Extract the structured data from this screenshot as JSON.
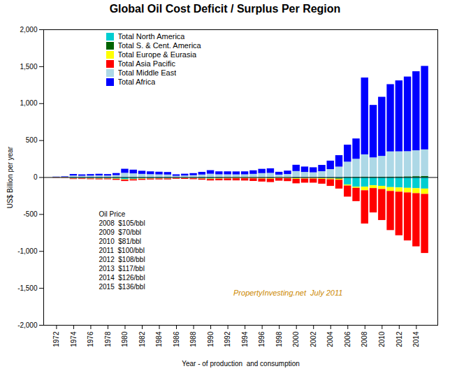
{
  "chart_data": {
    "type": "bar",
    "stacked": true,
    "title": "Global Oil Cost Deficit / Surplus Per Region",
    "xlabel": "Year - of production  and consumption",
    "ylabel": "US$ Billion per year",
    "x": [
      1972,
      1973,
      1974,
      1975,
      1976,
      1977,
      1978,
      1979,
      1980,
      1981,
      1982,
      1983,
      1984,
      1985,
      1986,
      1987,
      1988,
      1989,
      1990,
      1991,
      1992,
      1993,
      1994,
      1995,
      1996,
      1997,
      1998,
      1999,
      2000,
      2001,
      2002,
      2003,
      2004,
      2005,
      2006,
      2007,
      2008,
      2009,
      2010,
      2011,
      2012,
      2013,
      2014,
      2015
    ],
    "xlim": [
      1970.5,
      2016.5
    ],
    "xticks": [
      1972,
      1974,
      1976,
      1978,
      1980,
      1982,
      1984,
      1986,
      1988,
      1990,
      1992,
      1994,
      1996,
      1998,
      2000,
      2002,
      2004,
      2006,
      2008,
      2010,
      2012,
      2014
    ],
    "ylim": [
      -2000,
      2000
    ],
    "yticks": [
      {
        "value": -2000,
        "label": "-2,000"
      },
      {
        "value": -1500,
        "label": "-1,500"
      },
      {
        "value": -1000,
        "label": "-1,000"
      },
      -500,
      0,
      500,
      {
        "value": 1000,
        "label": "1,000"
      },
      {
        "value": 1500,
        "label": "1,500"
      },
      {
        "value": 2000,
        "label": "2,000"
      }
    ],
    "grid": false,
    "legend": "upper left",
    "series": [
      {
        "name": "Total North America",
        "color": "#00CED1",
        "values": [
          -2,
          -3,
          -12,
          -11,
          -13,
          -14,
          -13,
          -16,
          -24,
          -20,
          -16,
          -14,
          -13,
          -13,
          -8,
          -8,
          -10,
          -13,
          -16,
          -12,
          -8,
          -6,
          -6,
          -6,
          -8,
          -10,
          -6,
          -6,
          -10,
          -8,
          -8,
          -10,
          -12,
          -15,
          -100,
          -130,
          -130,
          -110,
          -118,
          -135,
          -140,
          -145,
          -150,
          -155
        ]
      },
      {
        "name": "Total S. & Cent. America",
        "color": "#006400",
        "values": [
          -1,
          -1,
          -2,
          -2,
          -2,
          -2,
          -2,
          -3,
          -4,
          -3,
          -2,
          -2,
          -2,
          -2,
          -2,
          -2,
          -2,
          -2,
          -3,
          -3,
          -3,
          -3,
          -3,
          -4,
          -4,
          -4,
          -3,
          -3,
          -5,
          -4,
          -4,
          -5,
          -6,
          -7,
          4,
          6,
          8,
          7,
          7,
          8,
          9,
          11,
          13,
          15
        ]
      },
      {
        "name": "Total Europe & Eurasia",
        "color": "#FFFF00",
        "values": [
          -2,
          -2,
          -4,
          -4,
          -4,
          -4,
          -4,
          -5,
          -7,
          -6,
          -5,
          -4,
          -4,
          -4,
          -3,
          -4,
          -4,
          -5,
          -6,
          -6,
          -7,
          -7,
          -7,
          -7,
          -8,
          -8,
          -6,
          -7,
          -9,
          -8,
          -8,
          -9,
          -11,
          -13,
          -14,
          -15,
          -48,
          -38,
          -43,
          -52,
          -57,
          -62,
          -67,
          -72
        ]
      },
      {
        "name": "Total Asia Pacific",
        "color": "#FF0000",
        "values": [
          -3,
          -4,
          -8,
          -8,
          -9,
          -10,
          -10,
          -13,
          -18,
          -16,
          -14,
          -12,
          -12,
          -12,
          -9,
          -10,
          -12,
          -15,
          -20,
          -22,
          -25,
          -28,
          -30,
          -35,
          -40,
          -45,
          -33,
          -38,
          -60,
          -55,
          -55,
          -65,
          -90,
          -120,
          -150,
          -180,
          -450,
          -330,
          -420,
          -530,
          -590,
          -650,
          -720,
          -800
        ]
      },
      {
        "name": "Total Middle East",
        "color": "#ADD8E6",
        "values": [
          3,
          5,
          22,
          19,
          21,
          23,
          21,
          27,
          58,
          51,
          44,
          40,
          37,
          35,
          18,
          22,
          26,
          35,
          46,
          38,
          38,
          37,
          38,
          44,
          54,
          57,
          34,
          42,
          82,
          70,
          65,
          80,
          108,
          142,
          205,
          242,
          300,
          260,
          280,
          340,
          340,
          340,
          350,
          360
        ]
      },
      {
        "name": "Total Africa",
        "color": "#0000FF",
        "values": [
          4,
          6,
          20,
          18,
          20,
          22,
          20,
          28,
          55,
          50,
          42,
          38,
          36,
          34,
          20,
          24,
          28,
          36,
          48,
          40,
          40,
          40,
          40,
          48,
          58,
          62,
          38,
          46,
          85,
          73,
          68,
          85,
          115,
          155,
          230,
          275,
          1040,
          710,
          800,
          910,
          960,
          1010,
          1070,
          1130
        ]
      }
    ],
    "annotations": [
      {
        "text": "Oil Price\n2008  $105/bbl\n2009  $70/bbl\n2010  $81/bbl\n2011  $100/bbl\n2012  $108/bbl\n2013  $117/bbl\n2014  $126/bbl\n2015  $136/bbl"
      },
      {
        "text": "PropertyInvesting.net  July 2011",
        "color": "#CC8800"
      }
    ]
  }
}
